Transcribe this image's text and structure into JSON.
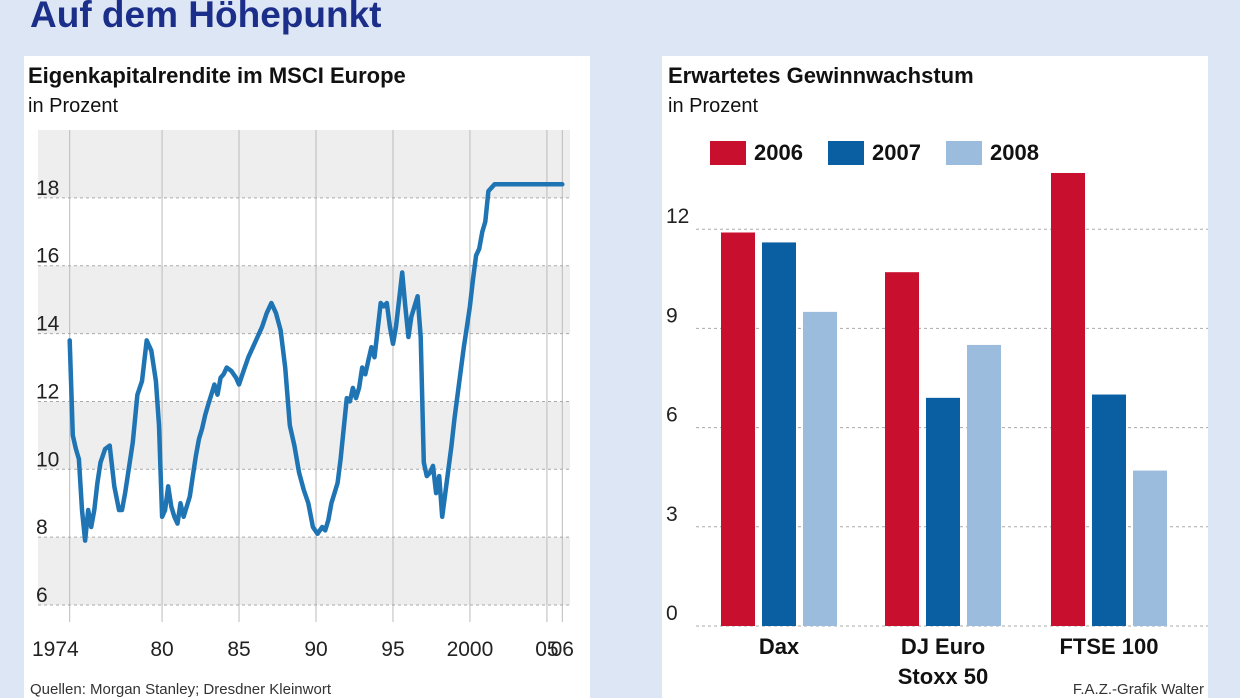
{
  "title": "Auf dem Höhepunkt",
  "colors": {
    "background": "#dde6f5",
    "band": "#eeeeee",
    "line": "#1f74b4",
    "y2006": "#c8102e",
    "y2007": "#0a5fa3",
    "y2008": "#9bbcdc"
  },
  "footer": {
    "source": "Quellen: Morgan Stanley; Dresdner Kleinwort",
    "credit": "F.A.Z.-Grafik Walter"
  },
  "chart_data": [
    {
      "type": "line",
      "title": "Eigenkapitalrendite im MSCI Europe",
      "subtitle": "in Prozent",
      "ylim": [
        5.5,
        20
      ],
      "yticks": [
        6,
        8,
        10,
        12,
        14,
        16,
        18
      ],
      "xlim": [
        1973.5,
        2006.5
      ],
      "xticks": [
        {
          "v": 1974,
          "label": "1974"
        },
        {
          "v": 1980,
          "label": "80"
        },
        {
          "v": 1985,
          "label": "85"
        },
        {
          "v": 1990,
          "label": "90"
        },
        {
          "v": 1995,
          "label": "95"
        },
        {
          "v": 2000,
          "label": "2000"
        },
        {
          "v": 2005,
          "label": "05"
        },
        {
          "v": 2006,
          "label": "06"
        }
      ],
      "series": [
        {
          "x": [
            1974.0,
            1974.2,
            1974.4,
            1974.6,
            1974.8,
            1975.0,
            1975.2,
            1975.4,
            1975.6,
            1975.8,
            1976.0,
            1976.3,
            1976.6,
            1976.9,
            1977.2,
            1977.4,
            1977.6,
            1977.8,
            1978.1,
            1978.4,
            1978.7,
            1979.0,
            1979.3,
            1979.6,
            1979.8,
            1980.0,
            1980.2,
            1980.4,
            1980.6,
            1980.8,
            1981.0,
            1981.2,
            1981.4,
            1981.6,
            1981.8,
            1982.0,
            1982.2,
            1982.4,
            1982.6,
            1982.8,
            1983.0,
            1983.2,
            1983.4,
            1983.6,
            1983.8,
            1984.0,
            1984.2,
            1984.5,
            1984.8,
            1985.0,
            1985.3,
            1985.6,
            1985.9,
            1986.2,
            1986.5,
            1986.8,
            1987.1,
            1987.4,
            1987.7,
            1988.0,
            1988.3,
            1988.6,
            1988.9,
            1989.2,
            1989.5,
            1989.8,
            1990.1,
            1990.4,
            1990.6,
            1990.8,
            1991.0,
            1991.2,
            1991.4,
            1991.6,
            1991.8,
            1992.0,
            1992.2,
            1992.4,
            1992.6,
            1992.8,
            1993.0,
            1993.2,
            1993.4,
            1993.6,
            1993.8,
            1994.0,
            1994.2,
            1994.4,
            1994.6,
            1994.8,
            1995.0,
            1995.2,
            1995.4,
            1995.6,
            1995.8,
            1996.0,
            1996.2,
            1996.4,
            1996.6,
            1996.8,
            1997.0,
            1997.2,
            1997.4,
            1997.6,
            1997.8,
            1998.0,
            1998.2,
            1998.4,
            1998.6,
            1998.8,
            1999.0,
            1999.2,
            1999.4,
            1999.6,
            1999.8,
            2000.0,
            2000.2,
            2000.4,
            2000.6,
            2000.8,
            2001.0,
            2001.2,
            2001.4,
            2001.6,
            2001.8,
            2002.0,
            2002.2,
            2002.4,
            2002.6,
            2002.8,
            2003.0,
            2003.2,
            2003.4,
            2003.6,
            2003.8,
            2004.0,
            2004.2,
            2004.4,
            2004.6,
            2004.8,
            2005.0,
            2005.2,
            2005.4,
            2005.6,
            2005.8,
            2006.0
          ],
          "y": [
            13.8,
            11.0,
            10.6,
            10.3,
            8.8,
            7.9,
            8.8,
            8.3,
            8.8,
            9.6,
            10.2,
            10.6,
            10.7,
            9.5,
            8.8,
            8.8,
            9.3,
            9.9,
            10.8,
            12.2,
            12.6,
            13.8,
            13.5,
            12.6,
            11.3,
            8.6,
            8.8,
            9.5,
            8.9,
            8.6,
            8.4,
            9.0,
            8.6,
            8.9,
            9.2,
            9.8,
            10.4,
            10.9,
            11.2,
            11.6,
            11.9,
            12.2,
            12.5,
            12.2,
            12.7,
            12.8,
            13.0,
            12.9,
            12.7,
            12.5,
            12.9,
            13.3,
            13.6,
            13.9,
            14.2,
            14.6,
            14.9,
            14.6,
            14.1,
            13.0,
            11.3,
            10.7,
            9.9,
            9.4,
            9.0,
            8.3,
            8.1,
            8.3,
            8.2,
            8.5,
            9.0,
            9.3,
            9.6,
            10.3,
            11.2,
            12.1,
            12.0,
            12.4,
            12.1,
            12.4,
            13.0,
            12.8,
            13.2,
            13.6,
            13.3,
            14.1,
            14.9,
            14.8,
            14.9,
            14.2,
            13.7,
            14.2,
            15.0,
            15.8,
            14.8,
            13.9,
            14.5,
            14.8,
            15.1,
            13.9,
            10.2,
            9.8,
            9.9,
            10.1,
            9.3,
            9.8,
            8.6,
            9.3,
            10.0,
            10.7,
            11.5,
            12.2,
            12.9,
            13.6,
            14.2,
            14.8,
            15.6,
            16.3,
            16.5,
            17.0,
            17.3,
            18.2,
            18.3,
            18.4,
            18.4,
            18.4,
            18.4,
            18.4,
            18.4,
            18.4,
            18.4,
            18.4,
            18.4,
            18.4,
            18.4,
            18.4,
            18.4,
            18.4,
            18.4,
            18.4,
            18.4,
            18.4,
            18.4,
            18.4,
            18.4,
            18.4
          ]
        }
      ]
    },
    {
      "type": "bar",
      "title": "Erwartetes Gewinnwachstum",
      "subtitle": "in Prozent",
      "ylim": [
        0,
        15
      ],
      "yticks": [
        0,
        3,
        6,
        9,
        12
      ],
      "categories": [
        "Dax",
        "DJ Euro Stoxx 50",
        "FTSE 100"
      ],
      "category_lines": [
        [
          "Dax"
        ],
        [
          "DJ Euro",
          "Stoxx 50"
        ],
        [
          "FTSE 100"
        ]
      ],
      "series": [
        {
          "name": "2006",
          "values": [
            11.9,
            10.7,
            13.7
          ]
        },
        {
          "name": "2007",
          "values": [
            11.6,
            6.9,
            7.0
          ]
        },
        {
          "name": "2008",
          "values": [
            9.5,
            8.5,
            4.7
          ]
        }
      ]
    }
  ]
}
